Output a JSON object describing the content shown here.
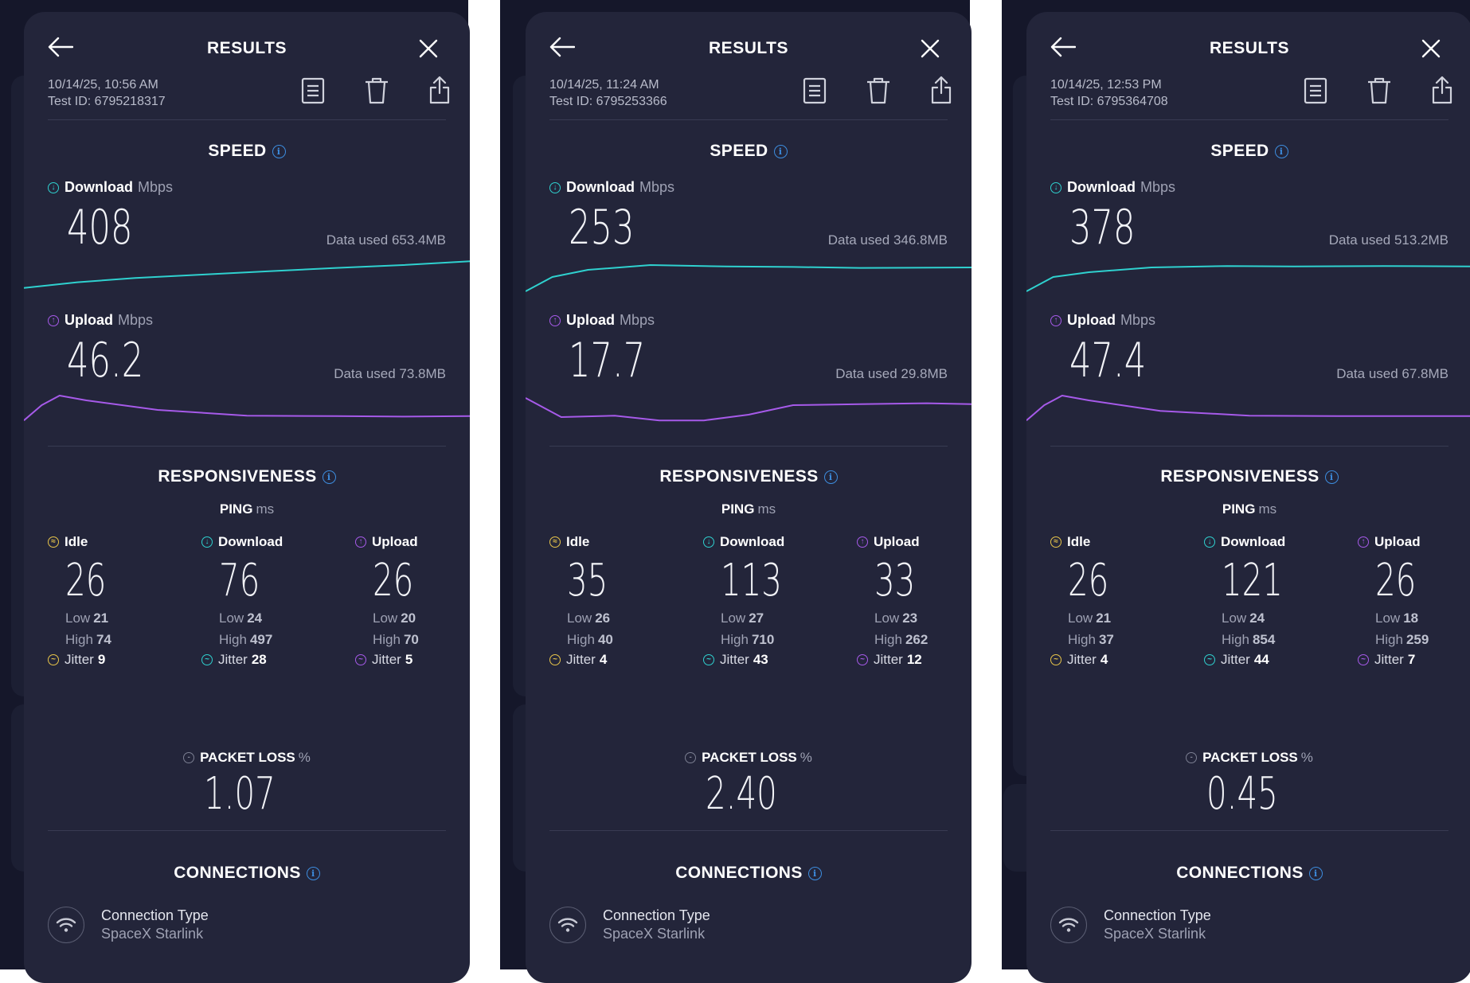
{
  "colors": {
    "card_bg": "#23253a",
    "page_bg": "#15172a",
    "download_accent": "#2fd1cf",
    "upload_accent": "#a65ae9",
    "idle_accent": "#e8c54a",
    "info_blue": "#3d8ddf"
  },
  "icons": {
    "back": "back-arrow-icon",
    "close": "close-icon",
    "details": "document-icon",
    "delete": "trash-icon",
    "share": "share-icon",
    "info": "info-icon",
    "download": "download-arrow-icon",
    "upload": "upload-arrow-icon",
    "idle": "idle-icon",
    "jitter": "jitter-icon",
    "packet_loss": "packet-loss-icon",
    "wifi": "wifi-icon"
  },
  "labels": {
    "title": "RESULTS",
    "speed": "SPEED",
    "download": "Download",
    "upload": "Upload",
    "mbps": "Mbps",
    "data_used_prefix": "Data used",
    "responsiveness": "RESPONSIVENESS",
    "ping": "PING",
    "ms": "ms",
    "idle": "Idle",
    "low": "Low",
    "high": "High",
    "jitter": "Jitter",
    "packet_loss": "PACKET LOSS",
    "percent": "%",
    "connections": "CONNECTIONS",
    "connection_type": "Connection Type"
  },
  "results": [
    {
      "datetime": "10/14/25, 10:56 AM",
      "test_id": "Test ID: 6795218317",
      "download": {
        "value": "408",
        "data_used": "Data used 653.4MB",
        "trace": [
          [
            0,
            0.78
          ],
          [
            0.12,
            0.66
          ],
          [
            0.25,
            0.57
          ],
          [
            0.4,
            0.5
          ],
          [
            0.55,
            0.43
          ],
          [
            0.7,
            0.36
          ],
          [
            0.85,
            0.3
          ],
          [
            1,
            0.22
          ]
        ]
      },
      "upload": {
        "value": "46.2",
        "data_used": "Data used 73.8MB",
        "trace": [
          [
            0,
            0.72
          ],
          [
            0.04,
            0.4
          ],
          [
            0.08,
            0.2
          ],
          [
            0.14,
            0.3
          ],
          [
            0.3,
            0.5
          ],
          [
            0.5,
            0.62
          ],
          [
            0.7,
            0.63
          ],
          [
            0.85,
            0.64
          ],
          [
            1,
            0.63
          ]
        ]
      },
      "ping": {
        "idle": {
          "value": "26",
          "low": "21",
          "high": "74",
          "jitter": "9"
        },
        "download": {
          "value": "76",
          "low": "24",
          "high": "497",
          "jitter": "28"
        },
        "upload": {
          "value": "26",
          "low": "20",
          "high": "70",
          "jitter": "5"
        }
      },
      "packet_loss": "1.07",
      "connection": "SpaceX Starlink"
    },
    {
      "datetime": "10/14/25, 11:24 AM",
      "test_id": "Test ID: 6795253366",
      "download": {
        "value": "253",
        "data_used": "Data used 346.8MB",
        "trace": [
          [
            0,
            0.85
          ],
          [
            0.06,
            0.55
          ],
          [
            0.14,
            0.4
          ],
          [
            0.28,
            0.3
          ],
          [
            0.45,
            0.33
          ],
          [
            0.6,
            0.34
          ],
          [
            0.75,
            0.36
          ],
          [
            1,
            0.35
          ]
        ]
      },
      "upload": {
        "value": "17.7",
        "data_used": "Data used 29.8MB",
        "trace": [
          [
            0,
            0.25
          ],
          [
            0.08,
            0.65
          ],
          [
            0.2,
            0.62
          ],
          [
            0.3,
            0.72
          ],
          [
            0.4,
            0.72
          ],
          [
            0.5,
            0.6
          ],
          [
            0.6,
            0.4
          ],
          [
            0.75,
            0.38
          ],
          [
            0.9,
            0.36
          ],
          [
            1,
            0.38
          ]
        ]
      },
      "ping": {
        "idle": {
          "value": "35",
          "low": "26",
          "high": "40",
          "jitter": "4"
        },
        "download": {
          "value": "113",
          "low": "27",
          "high": "710",
          "jitter": "43"
        },
        "upload": {
          "value": "33",
          "low": "23",
          "high": "262",
          "jitter": "12"
        }
      },
      "packet_loss": "2.40",
      "connection": "SpaceX Starlink"
    },
    {
      "datetime": "10/14/25, 12:53 PM",
      "test_id": "Test ID: 6795364708",
      "download": {
        "value": "378",
        "data_used": "Data used 513.2MB",
        "trace": [
          [
            0,
            0.85
          ],
          [
            0.06,
            0.55
          ],
          [
            0.14,
            0.45
          ],
          [
            0.28,
            0.35
          ],
          [
            0.45,
            0.32
          ],
          [
            0.6,
            0.33
          ],
          [
            0.8,
            0.32
          ],
          [
            1,
            0.33
          ]
        ]
      },
      "upload": {
        "value": "47.4",
        "data_used": "Data used 67.8MB",
        "trace": [
          [
            0,
            0.72
          ],
          [
            0.04,
            0.4
          ],
          [
            0.08,
            0.2
          ],
          [
            0.14,
            0.3
          ],
          [
            0.3,
            0.52
          ],
          [
            0.5,
            0.62
          ],
          [
            0.7,
            0.63
          ],
          [
            0.85,
            0.63
          ],
          [
            1,
            0.63
          ]
        ]
      },
      "ping": {
        "idle": {
          "value": "26",
          "low": "21",
          "high": "37",
          "jitter": "4"
        },
        "download": {
          "value": "121",
          "low": "24",
          "high": "854",
          "jitter": "44"
        },
        "upload": {
          "value": "26",
          "low": "18",
          "high": "259",
          "jitter": "7"
        }
      },
      "packet_loss": "0.45",
      "connection": "SpaceX Starlink"
    }
  ]
}
